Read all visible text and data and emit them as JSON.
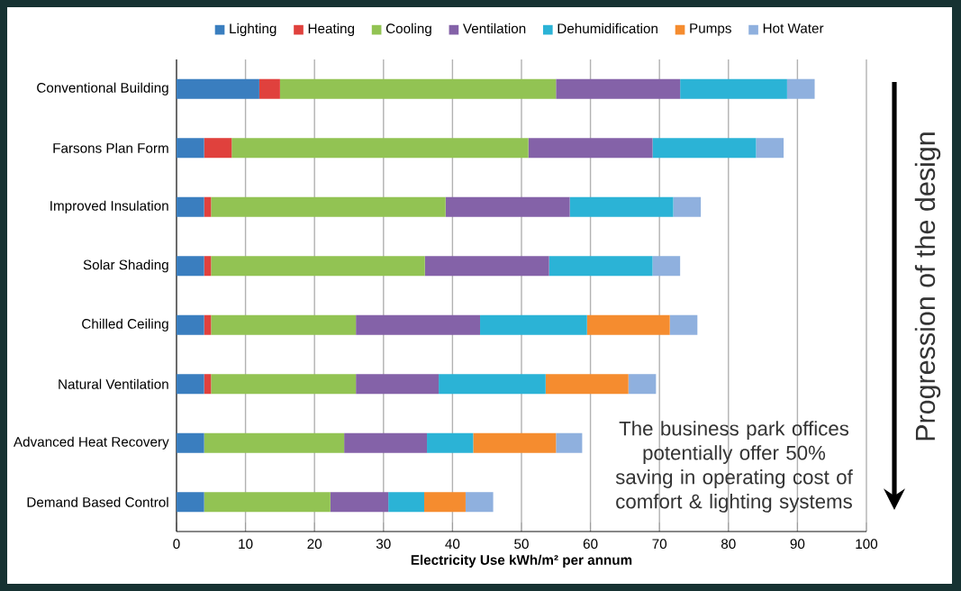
{
  "chart_data": {
    "type": "bar",
    "orientation": "horizontal",
    "stacked": true,
    "categories": [
      "Conventional Building",
      "Farsons Plan Form",
      "Improved Insulation",
      "Solar Shading",
      "Chilled Ceiling",
      "Natural Ventilation",
      "Advanced Heat Recovery",
      "Demand Based Control"
    ],
    "series": [
      {
        "name": "Lighting",
        "color": "#3a7ebf",
        "values": [
          12,
          4,
          4,
          4,
          4,
          4,
          4,
          4
        ]
      },
      {
        "name": "Heating",
        "color": "#e0413d",
        "values": [
          3,
          4,
          1,
          1,
          1,
          1,
          0,
          0
        ]
      },
      {
        "name": "Cooling",
        "color": "#92c353",
        "values": [
          40,
          43,
          34,
          31,
          21,
          21,
          20.3,
          18.3
        ]
      },
      {
        "name": "Ventilation",
        "color": "#8462a8",
        "values": [
          18,
          18,
          18,
          18,
          18,
          12,
          12,
          8.4
        ]
      },
      {
        "name": "Dehumidification",
        "color": "#2bb3d6",
        "values": [
          15.5,
          15,
          15,
          15,
          15.5,
          15.5,
          6.7,
          5.2
        ]
      },
      {
        "name": "Pumps",
        "color": "#f58c2f",
        "values": [
          0,
          0,
          0,
          0,
          12,
          12,
          12,
          6
        ]
      },
      {
        "name": "Hot Water",
        "color": "#8fb0de",
        "values": [
          4,
          4,
          4,
          4,
          4,
          4,
          3.8,
          4
        ]
      }
    ],
    "xlim": [
      0,
      100
    ],
    "xticks": [
      0,
      10,
      20,
      30,
      40,
      50,
      60,
      70,
      80,
      90,
      100
    ],
    "xlabel": "Electricity Use kWh/m² per annum",
    "grid": "x",
    "legend": "top",
    "annotations": [
      "The business park offices potentially offer 50% saving in operating cost of comfort & lighting systems",
      "Progression of the design"
    ]
  }
}
